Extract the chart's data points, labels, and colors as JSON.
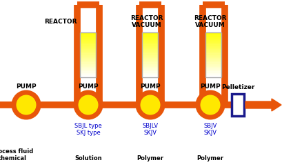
{
  "bg_color": "#ffffff",
  "orange": "#E8560A",
  "yellow": "#FFE800",
  "blue": "#0000CC",
  "dark_blue": "#1A1A8C",
  "pump_labels": [
    "PUMP",
    "PUMP",
    "PUMP",
    "PUMP"
  ],
  "reactor_labels": [
    "REACTOR",
    "REACTOR\nVACUUM",
    "REACTOR\nVACUUM"
  ],
  "pump_type_labels": [
    "SBJL type\nSKJ type",
    "SBJLV\nSKJV",
    "SBJV\nSKJV"
  ],
  "fluid_labels": [
    "Process fluid\nchemical",
    "Solution",
    "Polymer",
    "Polymer"
  ],
  "pelletizer_label": "Pelletizer"
}
